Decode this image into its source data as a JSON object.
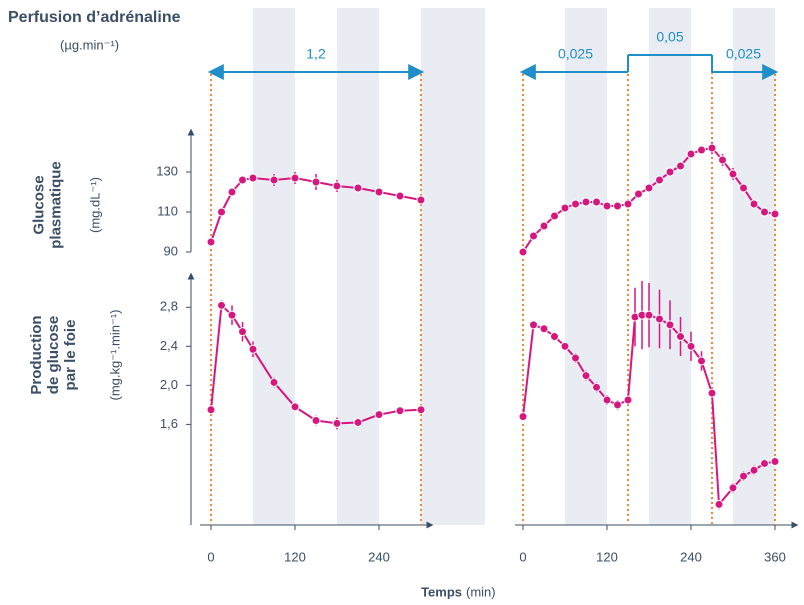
{
  "title": "Perfusion d’adrénaline",
  "infusion_unit": "(µg.min⁻¹)",
  "x_label": "Temps",
  "x_unit": "(min)",
  "glucose_axis": {
    "label": [
      "Glucose",
      "plasmatique"
    ],
    "unit": "(mg.dL⁻¹)",
    "ylim": [
      90,
      150
    ],
    "yticks": [
      90,
      110,
      130
    ]
  },
  "production_axis": {
    "label": [
      "Production",
      "de glucose",
      "par le foie"
    ],
    "unit": "(mg.kg⁻¹.min⁻¹)",
    "ylim": [
      0.6,
      3.1
    ],
    "yticks": [
      {
        "value": 1.6,
        "label": "1,6"
      },
      {
        "value": 2.0,
        "label": "2,0"
      },
      {
        "value": 2.4,
        "label": "2,4"
      },
      {
        "value": 2.8,
        "label": "2,8"
      }
    ]
  },
  "chart_data": [
    {
      "type": "line",
      "xlim": [
        0,
        300
      ],
      "xticks": [
        0,
        120,
        240
      ],
      "infusion": [
        {
          "value": 1.2,
          "label": "1,2",
          "start": 0,
          "end": 300
        }
      ],
      "series": [
        {
          "axis": "glucose",
          "color": "#d6177f",
          "x": [
            0,
            15,
            30,
            45,
            60,
            90,
            120,
            150,
            180,
            210,
            240,
            270,
            300
          ],
          "values": [
            95,
            110,
            120,
            126,
            127,
            126,
            127,
            125,
            123,
            122,
            120,
            118,
            116
          ],
          "errors": [
            1,
            1,
            2,
            2,
            2,
            3,
            3,
            4,
            3,
            2,
            2,
            2,
            2
          ]
        },
        {
          "axis": "production",
          "color": "#d6177f",
          "x": [
            0,
            15,
            30,
            45,
            60,
            90,
            120,
            150,
            180,
            210,
            240,
            270,
            300
          ],
          "values": [
            1.75,
            2.82,
            2.72,
            2.55,
            2.37,
            2.03,
            1.78,
            1.64,
            1.61,
            1.62,
            1.7,
            1.74,
            1.75
          ],
          "errors": [
            0.02,
            0.05,
            0.1,
            0.1,
            0.08,
            0.05,
            0.04,
            0.05,
            0.06,
            0.04,
            0.03,
            0.03,
            0.03
          ]
        }
      ]
    },
    {
      "type": "line",
      "xlim": [
        0,
        360
      ],
      "xticks": [
        0,
        120,
        240,
        360
      ],
      "infusion": [
        {
          "value": 0.025,
          "label": "0,025",
          "start": 0,
          "end": 150
        },
        {
          "value": 0.05,
          "label": "0,05",
          "start": 150,
          "end": 270
        },
        {
          "value": 0.025,
          "label": "0,025",
          "start": 270,
          "end": 360
        }
      ],
      "series": [
        {
          "axis": "glucose",
          "color": "#d6177f",
          "x": [
            0,
            15,
            30,
            45,
            60,
            75,
            90,
            105,
            120,
            135,
            150,
            165,
            180,
            195,
            210,
            225,
            240,
            255,
            270,
            285,
            300,
            315,
            330,
            345,
            360
          ],
          "values": [
            90,
            98,
            103,
            108,
            112,
            114,
            115,
            115,
            113,
            113,
            114,
            119,
            122,
            126,
            130,
            133,
            139,
            141,
            142,
            136,
            129,
            122,
            114,
            110,
            109
          ],
          "errors": [
            1,
            1,
            1,
            1,
            1,
            1,
            1,
            1,
            1,
            1,
            1,
            1,
            1,
            1,
            1,
            1,
            2,
            2,
            3,
            3,
            3,
            2,
            2,
            1,
            1
          ]
        },
        {
          "axis": "production",
          "color": "#d6177f",
          "x": [
            0,
            15,
            30,
            45,
            60,
            75,
            90,
            105,
            120,
            135,
            150,
            160,
            170,
            180,
            195,
            210,
            225,
            240,
            255,
            270,
            280,
            300,
            315,
            330,
            345,
            360
          ],
          "values": [
            1.68,
            2.62,
            2.58,
            2.5,
            2.4,
            2.28,
            2.1,
            1.98,
            1.85,
            1.8,
            1.85,
            2.7,
            2.72,
            2.72,
            2.68,
            2.62,
            2.5,
            2.4,
            2.25,
            1.92,
            0.78,
            0.95,
            1.07,
            1.13,
            1.2,
            1.22
          ],
          "errors": [
            0.02,
            0.03,
            0.03,
            0.04,
            0.04,
            0.05,
            0.05,
            0.05,
            0.05,
            0.05,
            0.05,
            0.3,
            0.35,
            0.33,
            0.3,
            0.25,
            0.2,
            0.15,
            0.1,
            0.05,
            0.05,
            0.05,
            0.05,
            0.05,
            0.04,
            0.04
          ]
        }
      ]
    }
  ]
}
